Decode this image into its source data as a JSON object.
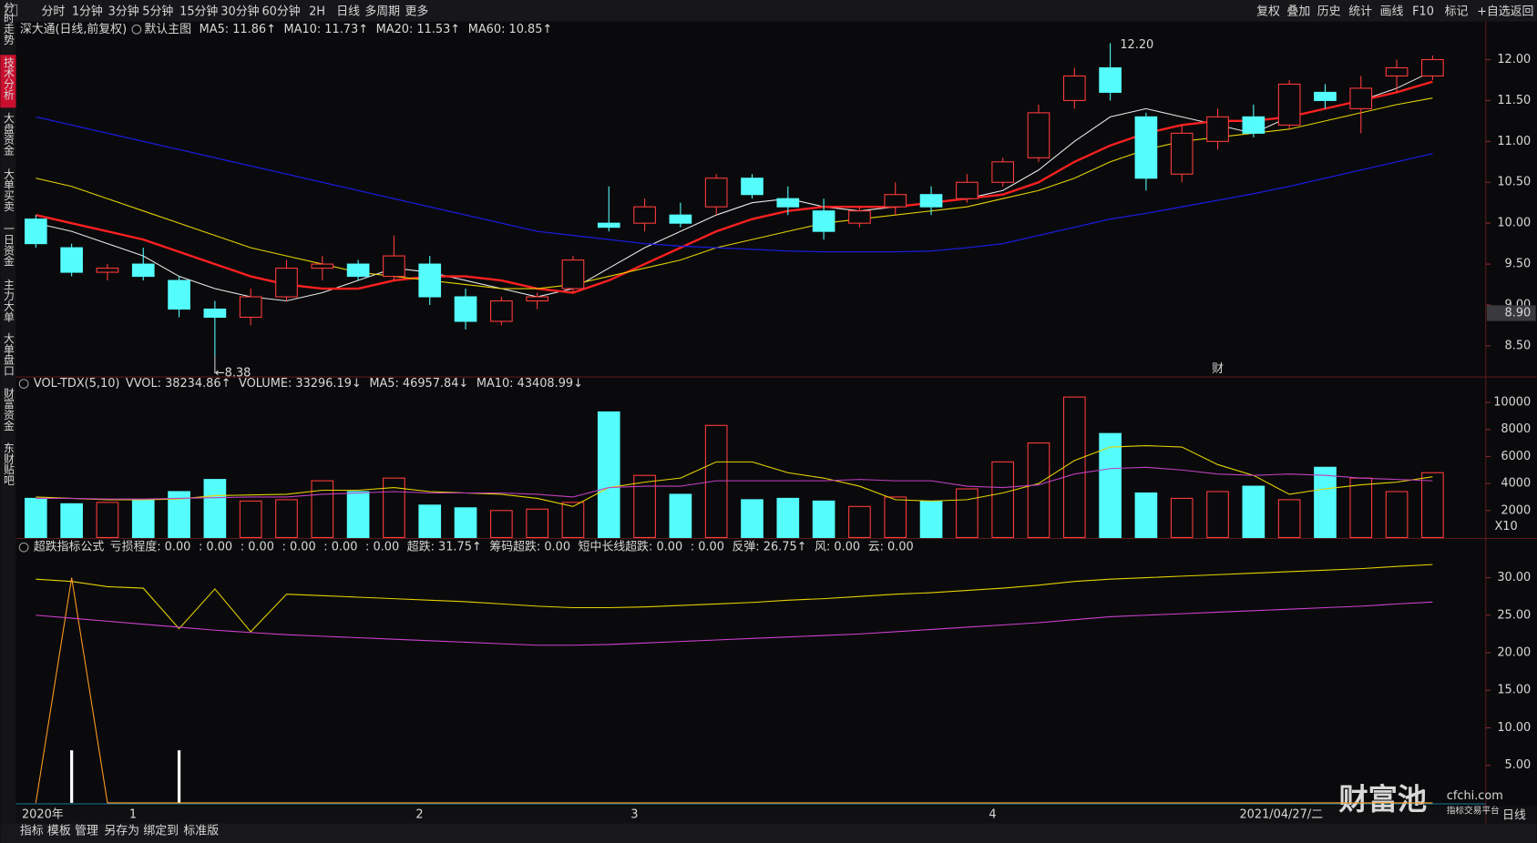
{
  "toolbar": {
    "left": [
      "分时",
      "1分钟",
      "3分钟",
      "5分钟",
      "15分钟",
      "30分钟",
      "60分钟",
      "2H",
      "日线",
      "多周期",
      "更多"
    ],
    "left_active": 8,
    "right": [
      "复权",
      "叠加",
      "历史",
      "统计",
      "画线",
      "F10",
      "标记",
      "+自选",
      "返回"
    ]
  },
  "sidebar": {
    "items": [
      "分时走势",
      "技术分析",
      "大盘资金",
      "大单买卖",
      "一日资金",
      "主力大单",
      "大单盘口",
      "财富资金",
      "东财贴吧"
    ],
    "active": 1
  },
  "bottom_tabs": {
    "items": [
      "指标",
      "模板",
      "管理",
      "另存为",
      "绑定到",
      "标准版"
    ],
    "active": 2
  },
  "axis_badge": "日线",
  "watermark": {
    "title": "财富池",
    "site": "cfchi.com",
    "tagline": "指标交易平台"
  },
  "chart_data": [
    {
      "type": "candlestick",
      "title": "深大通(日线,前复权)",
      "subtitle": "默认主图",
      "categories": [
        "2020年",
        null,
        null,
        "1",
        null,
        null,
        null,
        null,
        null,
        null,
        null,
        "2",
        null,
        null,
        null,
        null,
        null,
        "3",
        null,
        null,
        null,
        null,
        null,
        null,
        null,
        null,
        null,
        "4",
        null,
        null,
        null,
        null,
        null,
        null,
        "2021/04/27/二",
        null,
        null,
        null,
        null,
        null
      ],
      "open": [
        10.05,
        9.7,
        9.4,
        9.5,
        9.3,
        8.95,
        8.85,
        9.1,
        9.45,
        9.5,
        9.35,
        9.5,
        9.1,
        8.8,
        9.05,
        9.2,
        10.0,
        10.0,
        10.1,
        10.2,
        10.55,
        10.3,
        10.15,
        10.0,
        10.2,
        10.35,
        10.3,
        10.5,
        10.8,
        11.5,
        11.9,
        11.3,
        10.6,
        11.0,
        11.3,
        11.2,
        11.6,
        11.4,
        11.8,
        11.8
      ],
      "high": [
        10.1,
        9.75,
        9.5,
        9.7,
        9.35,
        9.05,
        9.2,
        9.55,
        9.6,
        9.55,
        9.85,
        9.6,
        9.2,
        9.1,
        9.15,
        9.6,
        10.45,
        10.3,
        10.25,
        10.6,
        10.6,
        10.45,
        10.3,
        10.2,
        10.5,
        10.45,
        10.6,
        10.8,
        11.45,
        11.9,
        12.2,
        11.35,
        11.2,
        11.4,
        11.45,
        11.75,
        11.7,
        11.8,
        12.0,
        12.05
      ],
      "low": [
        9.7,
        9.35,
        9.3,
        9.3,
        8.85,
        8.38,
        8.75,
        9.05,
        9.3,
        9.3,
        9.3,
        9.0,
        8.7,
        8.75,
        8.95,
        9.15,
        9.9,
        9.9,
        9.95,
        10.1,
        10.3,
        10.1,
        9.8,
        9.95,
        10.1,
        10.1,
        10.25,
        10.45,
        10.75,
        11.4,
        11.5,
        10.4,
        10.5,
        10.9,
        11.05,
        11.15,
        11.4,
        11.1,
        11.6,
        11.75
      ],
      "close": [
        9.75,
        9.4,
        9.45,
        9.35,
        8.95,
        8.85,
        9.1,
        9.45,
        9.5,
        9.35,
        9.6,
        9.1,
        8.8,
        9.05,
        9.1,
        9.55,
        9.95,
        10.2,
        10.0,
        10.55,
        10.35,
        10.2,
        9.9,
        10.15,
        10.35,
        10.2,
        10.5,
        10.75,
        11.35,
        11.8,
        11.6,
        10.55,
        11.1,
        11.3,
        11.1,
        11.7,
        11.5,
        11.65,
        11.9,
        12.0
      ],
      "up_color": "#ff3b3b",
      "down_color": "#54fcfc",
      "legend": [
        {
          "label": "MA5: 11.86↑",
          "color": "#e8e8e8"
        },
        {
          "label": "MA10: 11.73↑",
          "color": "#ff3030"
        },
        {
          "label": "MA20: 11.53↑",
          "color": "#e6d200"
        },
        {
          "label": "MA60: 10.85↑",
          "color": "#2a2aff"
        }
      ],
      "series": [
        {
          "style": "line",
          "color": "#e8e8e8",
          "width": 1,
          "values": [
            10.0,
            9.9,
            9.75,
            9.6,
            9.35,
            9.2,
            9.1,
            9.05,
            9.15,
            9.3,
            9.45,
            9.4,
            9.3,
            9.2,
            9.1,
            9.2,
            9.45,
            9.7,
            9.9,
            10.1,
            10.25,
            10.3,
            10.2,
            10.15,
            10.2,
            10.25,
            10.3,
            10.4,
            10.65,
            11.0,
            11.3,
            11.4,
            11.3,
            11.2,
            11.1,
            11.3,
            11.4,
            11.5,
            11.65,
            11.86
          ]
        },
        {
          "style": "line",
          "color": "#ff2020",
          "width": 2.2,
          "values": [
            10.1,
            10.0,
            9.9,
            9.8,
            9.65,
            9.5,
            9.35,
            9.25,
            9.2,
            9.2,
            9.3,
            9.35,
            9.35,
            9.3,
            9.2,
            9.15,
            9.3,
            9.5,
            9.7,
            9.9,
            10.05,
            10.15,
            10.2,
            10.2,
            10.2,
            10.25,
            10.3,
            10.35,
            10.5,
            10.75,
            10.95,
            11.1,
            11.2,
            11.25,
            11.25,
            11.3,
            11.4,
            11.5,
            11.6,
            11.73
          ]
        },
        {
          "style": "line",
          "color": "#e6d200",
          "width": 1,
          "values": [
            10.55,
            10.45,
            10.3,
            10.15,
            10.0,
            9.85,
            9.7,
            9.6,
            9.5,
            9.4,
            9.35,
            9.3,
            9.25,
            9.2,
            9.2,
            9.25,
            9.35,
            9.45,
            9.55,
            9.7,
            9.8,
            9.9,
            10.0,
            10.05,
            10.1,
            10.15,
            10.2,
            10.3,
            10.4,
            10.55,
            10.75,
            10.9,
            11.0,
            11.05,
            11.1,
            11.15,
            11.25,
            11.35,
            11.45,
            11.53
          ]
        },
        {
          "style": "line",
          "color": "#1a1ad8",
          "width": 1.2,
          "values": [
            11.3,
            11.2,
            11.1,
            11.0,
            10.9,
            10.8,
            10.7,
            10.6,
            10.5,
            10.4,
            10.3,
            10.2,
            10.1,
            10.0,
            9.9,
            9.85,
            9.8,
            9.75,
            9.72,
            9.7,
            9.68,
            9.66,
            9.65,
            9.65,
            9.65,
            9.66,
            9.7,
            9.75,
            9.85,
            9.95,
            10.05,
            10.12,
            10.2,
            10.28,
            10.36,
            10.45,
            10.55,
            10.65,
            10.75,
            10.85
          ]
        }
      ],
      "annotations": [
        {
          "index": 30,
          "value": 12.2,
          "label": "12.20"
        },
        {
          "index": 5,
          "value": 8.38,
          "label": "←8.38"
        }
      ],
      "markers": [
        {
          "index": 33,
          "label": "财"
        }
      ],
      "price_tag": {
        "value": 8.9,
        "label": "8.90"
      },
      "ylim": [
        8.12,
        12.25
      ],
      "yticks": [
        {
          "value": 8.5,
          "label": "8.50"
        },
        {
          "value": 9,
          "label": "9.00"
        },
        {
          "value": 9.5,
          "label": "9.50"
        },
        {
          "value": 10,
          "label": "10.00"
        },
        {
          "value": 10.5,
          "label": "10.50"
        },
        {
          "value": 11,
          "label": "11.00"
        },
        {
          "value": 11.5,
          "label": "11.50"
        },
        {
          "value": 12,
          "label": "12.00"
        }
      ],
      "grid": false
    },
    {
      "type": "volume",
      "title": "VOL-TDX(5,10)",
      "legend": [
        {
          "label": "VVOL: 38234.86↑",
          "color": "#e0e0e0"
        },
        {
          "label": "VOLUME: 33296.19↓",
          "color": "#e6d200"
        },
        {
          "label": "MA5: 46957.84↓",
          "color": "#e6d200"
        },
        {
          "label": "MA10: 43408.99↓",
          "color": "#e040e0"
        }
      ],
      "series": [
        {
          "style": "bar",
          "values": [
            2900,
            2500,
            2600,
            2800,
            3400,
            4300,
            2700,
            2800,
            4200,
            3400,
            4400,
            2400,
            2200,
            2000,
            2100,
            2600,
            9300,
            4600,
            3200,
            8300,
            2800,
            2900,
            2700,
            2300,
            3000,
            2700,
            3600,
            5600,
            7000,
            10400,
            7700,
            3300,
            2900,
            3400,
            3800,
            2800,
            5200,
            4400,
            3400,
            4800
          ]
        },
        {
          "style": "line",
          "color": "#e6d200",
          "width": 1,
          "values": [
            3000,
            2900,
            2800,
            2800,
            2850,
            3100,
            3150,
            3200,
            3500,
            3500,
            3700,
            3400,
            3300,
            3200,
            2900,
            2300,
            3700,
            4100,
            4400,
            5600,
            5600,
            4800,
            4400,
            3800,
            2800,
            2700,
            2800,
            3300,
            4000,
            5700,
            6700,
            6800,
            6700,
            5400,
            4600,
            3200,
            3600,
            3900,
            4100,
            4500
          ]
        },
        {
          "style": "line",
          "color": "#c040c0",
          "width": 1,
          "values": [
            2900,
            2900,
            2850,
            2850,
            2900,
            2950,
            3000,
            3000,
            3200,
            3300,
            3400,
            3300,
            3300,
            3300,
            3200,
            3000,
            3700,
            3800,
            3800,
            4200,
            4200,
            4200,
            4200,
            4300,
            4200,
            4200,
            3800,
            3700,
            3900,
            4700,
            5100,
            5200,
            5000,
            4700,
            4600,
            4700,
            4600,
            4400,
            4300,
            4200
          ]
        }
      ],
      "unit_label": "X10",
      "ylim": [
        0,
        10800
      ],
      "yticks": [
        2000,
        4000,
        6000,
        8000,
        10000
      ]
    },
    {
      "type": "indicator",
      "title": "超跌指标公式",
      "legend": [
        {
          "label": "亏损程度: 0.00",
          "color": "#e0e0e0"
        },
        {
          "label": ": 0.00",
          "color": "#3ad8e8"
        },
        {
          "label": ": 0.00",
          "color": "#2a2aff"
        },
        {
          "label": ": 0.00",
          "color": "#40e040"
        },
        {
          "label": ": 0.00",
          "color": "#e6d200"
        },
        {
          "label": ": 0.00",
          "color": "#e040e0"
        },
        {
          "label": "超跌: 31.75↑",
          "color": "#e6d200"
        },
        {
          "label": "筹码超跌: 0.00",
          "color": "#ff9a20"
        },
        {
          "label": "短中长线超跌: 0.00",
          "color": "#40e040"
        },
        {
          "label": ": 0.00",
          "color": "#3ad8e8"
        },
        {
          "label": "反弹: 26.75↑",
          "color": "#e040e0"
        },
        {
          "label": "风: 0.00",
          "color": "#e6d200"
        },
        {
          "label": "云: 0.00",
          "color": "#e03030"
        }
      ],
      "series": [
        {
          "style": "bar",
          "color": "#ffffff",
          "values": [
            0,
            7,
            0,
            0,
            7,
            0,
            0,
            0,
            0,
            0,
            0,
            0,
            0,
            0,
            0,
            0,
            0,
            0,
            0,
            0,
            0,
            0,
            0,
            0,
            0,
            0,
            0,
            0,
            0,
            0,
            0,
            0,
            0,
            0,
            0,
            0,
            0,
            0,
            0,
            0
          ]
        },
        {
          "style": "line",
          "color": "#e6d200",
          "width": 1,
          "values": [
            29.8,
            29.5,
            28.8,
            28.6,
            23.2,
            28.5,
            22.8,
            27.8,
            27.6,
            27.4,
            27.2,
            27,
            26.8,
            26.5,
            26.2,
            26,
            26,
            26.1,
            26.3,
            26.5,
            26.7,
            27,
            27.2,
            27.5,
            27.8,
            28,
            28.3,
            28.6,
            29,
            29.5,
            29.8,
            30,
            30.2,
            30.4,
            30.6,
            30.8,
            31,
            31.2,
            31.5,
            31.75
          ]
        },
        {
          "style": "line",
          "color": "#ff9a20",
          "width": 1,
          "values": [
            0,
            30,
            0,
            0,
            0,
            0,
            0,
            0,
            0,
            0,
            0,
            0,
            0,
            0,
            0,
            0,
            0,
            0,
            0,
            0,
            0,
            0,
            0,
            0,
            0,
            0,
            0,
            0,
            0,
            0,
            0,
            0,
            0,
            0,
            0,
            0,
            0,
            0,
            0,
            0
          ]
        },
        {
          "style": "line",
          "color": "#d040d0",
          "width": 1,
          "values": [
            25,
            24.6,
            24.2,
            23.8,
            23.4,
            23,
            22.7,
            22.4,
            22.2,
            22,
            21.8,
            21.6,
            21.4,
            21.2,
            21,
            21,
            21.1,
            21.3,
            21.5,
            21.7,
            21.9,
            22.1,
            22.3,
            22.5,
            22.8,
            23.1,
            23.4,
            23.7,
            24,
            24.4,
            24.8,
            25,
            25.2,
            25.4,
            25.6,
            25.8,
            26,
            26.2,
            26.5,
            26.75
          ]
        }
      ],
      "ylim": [
        0,
        33
      ],
      "yticks": [
        {
          "value": 5,
          "label": "5.00"
        },
        {
          "value": 10,
          "label": "10.00"
        },
        {
          "value": 15,
          "label": "15.00"
        },
        {
          "value": 20,
          "label": "20.00"
        },
        {
          "value": 25,
          "label": "25.00"
        },
        {
          "value": 30,
          "label": "30.00"
        }
      ]
    }
  ]
}
